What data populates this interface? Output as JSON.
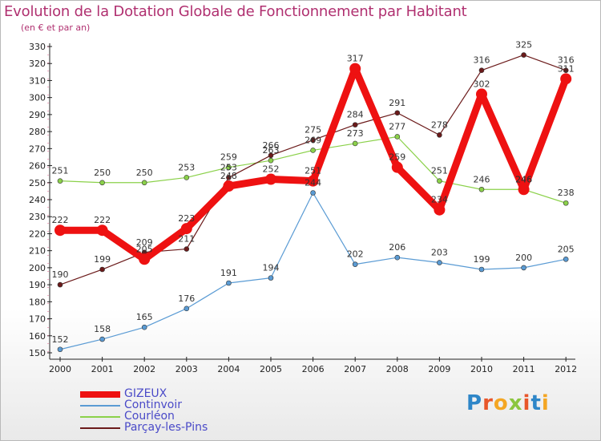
{
  "title": "Evolution de la Dotation Globale de Fonctionnement par Habitant",
  "subtitle": "(en € et par an)",
  "logo": {
    "text": "Proxiti",
    "letter_colors": [
      "#2e86c8",
      "#e8562a",
      "#f4a623",
      "#8cc63f",
      "#e8562a",
      "#2e86c8",
      "#f4a623"
    ]
  },
  "chart_data": {
    "type": "line",
    "title": "Evolution de la Dotation Globale de Fonctionnement par Habitant",
    "subtitle": "(en € et par an)",
    "xlabel": "",
    "ylabel": "",
    "ylim": [
      150,
      330
    ],
    "ystep": 10,
    "grid": false,
    "categories": [
      "2000",
      "2001",
      "2002",
      "2003",
      "2004",
      "2005",
      "2006",
      "2007",
      "2008",
      "2009",
      "2010",
      "2011",
      "2012"
    ],
    "series": [
      {
        "name": "GIZEUX",
        "color": "#ee1111",
        "width": 9,
        "marker": 7,
        "values": [
          222,
          222,
          205,
          223,
          248,
          252,
          251,
          317,
          259,
          234,
          302,
          246,
          311
        ],
        "labels": [
          "222",
          "222",
          "205",
          "223",
          "248",
          "252",
          "251",
          "317",
          "259",
          "234",
          "302",
          "246",
          "311"
        ]
      },
      {
        "name": "Continvoir",
        "color": "#5a9bd4",
        "width": 1.2,
        "marker": 3,
        "values": [
          152,
          158,
          165,
          176,
          191,
          194,
          244,
          202,
          206,
          203,
          199,
          200,
          205
        ],
        "labels": [
          "152",
          "158",
          "165",
          "176",
          "191",
          "194",
          "244",
          "202",
          "206",
          "203",
          "199",
          "200",
          "205"
        ]
      },
      {
        "name": "Courléon",
        "color": "#8bd14a",
        "width": 1.2,
        "marker": 3,
        "values": [
          251,
          250,
          250,
          253,
          259,
          263,
          269,
          273,
          277,
          251,
          246,
          246,
          238
        ],
        "labels": [
          "251",
          "250",
          "250",
          "253",
          "259",
          "263",
          "269",
          "273",
          "277",
          "251",
          "246",
          "246",
          "238"
        ]
      },
      {
        "name": "Parçay-les-Pins",
        "color": "#6b1a1a",
        "width": 1.2,
        "marker": 3,
        "values": [
          190,
          199,
          209,
          211,
          253,
          266,
          275,
          284,
          291,
          278,
          316,
          325,
          316
        ],
        "labels": [
          "190",
          "199",
          "209",
          "211",
          "253",
          "266",
          "275",
          "284",
          "291",
          "278",
          "316",
          "325",
          "316"
        ]
      }
    ],
    "legend_position": "bottom-left"
  }
}
